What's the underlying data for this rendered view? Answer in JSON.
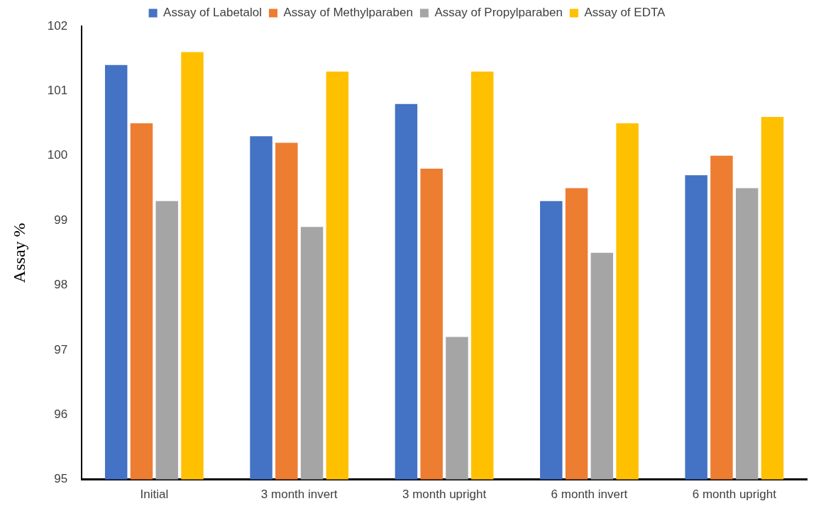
{
  "chart_data": {
    "type": "bar",
    "ylabel": "Assay %",
    "categories": [
      "Initial",
      "3 month invert",
      "3 month upright",
      "6 month invert",
      "6 month upright"
    ],
    "series": [
      {
        "name": "Assay of Labetalol",
        "color": "#4472c4",
        "values": [
          101.4,
          100.3,
          100.8,
          99.3,
          99.7
        ]
      },
      {
        "name": "Assay of Methylparaben",
        "color": "#ed7d31",
        "values": [
          100.5,
          100.2,
          99.8,
          99.5,
          100.0
        ]
      },
      {
        "name": "Assay of Propylparaben",
        "color": "#a5a5a5",
        "values": [
          99.3,
          98.9,
          97.2,
          98.5,
          99.5
        ]
      },
      {
        "name": "Assay of EDTA",
        "color": "#ffc000",
        "values": [
          101.6,
          101.3,
          101.3,
          100.5,
          100.6
        ]
      }
    ],
    "ylim": [
      95,
      102
    ],
    "yticks": [
      95,
      96,
      97,
      98,
      99,
      100,
      101,
      102
    ],
    "grid": false,
    "legend": "top"
  }
}
